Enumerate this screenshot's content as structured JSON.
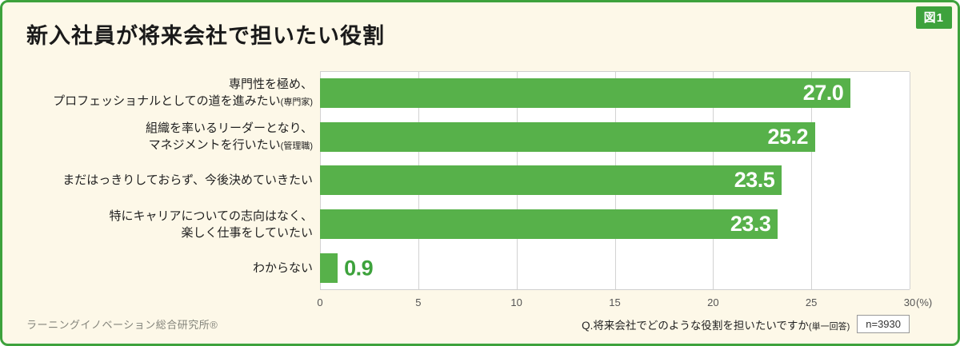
{
  "figure_tag": "図1",
  "title": "新入社員が将来会社で担いたい役割",
  "footer": {
    "source": "ラーニングイノベーション総合研究所®",
    "question": "Q.将来会社でどのような役割を担いたいですか",
    "question_note": "(単一回答)",
    "sample": "n=3930"
  },
  "colors": {
    "bar": "#57b14a",
    "border": "#3da23c",
    "background": "#fdf8e8",
    "value_outside": "#3da23c",
    "gridline": "#d2d2d2"
  },
  "chart_data": {
    "type": "bar",
    "orientation": "horizontal",
    "title": "新入社員が将来会社で担いたい役割",
    "categories": [
      {
        "lines": [
          "専門性を極め、",
          "プロフェッショナルとしての道を進みたい"
        ],
        "suffix": "(専門家)"
      },
      {
        "lines": [
          "組織を率いるリーダーとなり、",
          "マネジメントを行いたい"
        ],
        "suffix": "(管理職)"
      },
      {
        "lines": [
          "まだはっきりしておらず、今後決めていきたい"
        ],
        "suffix": ""
      },
      {
        "lines": [
          "特にキャリアについての志向はなく、",
          "楽しく仕事をしていたい"
        ],
        "suffix": ""
      },
      {
        "lines": [
          "わからない"
        ],
        "suffix": ""
      }
    ],
    "values": [
      27.0,
      25.2,
      23.5,
      23.3,
      0.9
    ],
    "value_labels": [
      "27.0",
      "25.2",
      "23.5",
      "23.3",
      "0.9"
    ],
    "xlim": [
      0,
      30
    ],
    "ticks": [
      0,
      5,
      10,
      15,
      20,
      25,
      30
    ],
    "x_unit_suffix": "(%)",
    "grid": true,
    "legend": "none"
  }
}
